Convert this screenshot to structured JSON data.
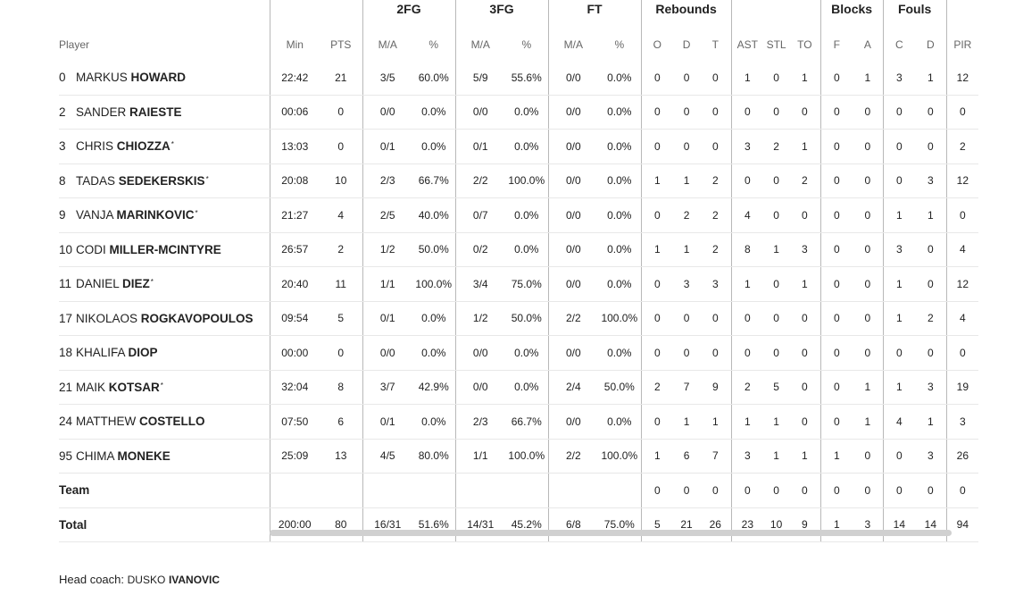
{
  "groups": {
    "fg2": "2FG",
    "fg3": "3FG",
    "ft": "FT",
    "reb": "Rebounds",
    "blk": "Blocks",
    "fouls": "Fouls"
  },
  "columns": [
    "Player",
    "Min",
    "PTS",
    "M/A",
    "%",
    "M/A",
    "%",
    "M/A",
    "%",
    "O",
    "D",
    "T",
    "AST",
    "STL",
    "TO",
    "F",
    "A",
    "C",
    "D",
    "PIR"
  ],
  "players": [
    {
      "num": "0",
      "first": "Markus",
      "last": "Howard",
      "starter": false,
      "stats": [
        "22:42",
        "21",
        "3/5",
        "60.0%",
        "5/9",
        "55.6%",
        "0/0",
        "0.0%",
        "0",
        "0",
        "0",
        "1",
        "0",
        "1",
        "0",
        "1",
        "3",
        "1",
        "12"
      ]
    },
    {
      "num": "2",
      "first": "Sander",
      "last": "Raieste",
      "starter": false,
      "stats": [
        "00:06",
        "0",
        "0/0",
        "0.0%",
        "0/0",
        "0.0%",
        "0/0",
        "0.0%",
        "0",
        "0",
        "0",
        "0",
        "0",
        "0",
        "0",
        "0",
        "0",
        "0",
        "0"
      ]
    },
    {
      "num": "3",
      "first": "Chris",
      "last": "Chiozza",
      "starter": true,
      "stats": [
        "13:03",
        "0",
        "0/1",
        "0.0%",
        "0/1",
        "0.0%",
        "0/0",
        "0.0%",
        "0",
        "0",
        "0",
        "3",
        "2",
        "1",
        "0",
        "0",
        "0",
        "0",
        "2"
      ]
    },
    {
      "num": "8",
      "first": "Tadas",
      "last": "Sedekerskis",
      "starter": true,
      "stats": [
        "20:08",
        "10",
        "2/3",
        "66.7%",
        "2/2",
        "100.0%",
        "0/0",
        "0.0%",
        "1",
        "1",
        "2",
        "0",
        "0",
        "2",
        "0",
        "0",
        "0",
        "3",
        "12"
      ]
    },
    {
      "num": "9",
      "first": "Vanja",
      "last": "Marinkovic",
      "starter": true,
      "stats": [
        "21:27",
        "4",
        "2/5",
        "40.0%",
        "0/7",
        "0.0%",
        "0/0",
        "0.0%",
        "0",
        "2",
        "2",
        "4",
        "0",
        "0",
        "0",
        "0",
        "1",
        "1",
        "0"
      ]
    },
    {
      "num": "10",
      "first": "Codi",
      "last": "Miller-McIntyre",
      "starter": false,
      "stats": [
        "26:57",
        "2",
        "1/2",
        "50.0%",
        "0/2",
        "0.0%",
        "0/0",
        "0.0%",
        "1",
        "1",
        "2",
        "8",
        "1",
        "3",
        "0",
        "0",
        "3",
        "0",
        "4"
      ]
    },
    {
      "num": "11",
      "first": "Daniel",
      "last": "Diez",
      "starter": true,
      "stats": [
        "20:40",
        "11",
        "1/1",
        "100.0%",
        "3/4",
        "75.0%",
        "0/0",
        "0.0%",
        "0",
        "3",
        "3",
        "1",
        "0",
        "1",
        "0",
        "0",
        "1",
        "0",
        "12"
      ]
    },
    {
      "num": "17",
      "first": "Nikolaos",
      "last": "Rogkavopoulos",
      "starter": false,
      "stats": [
        "09:54",
        "5",
        "0/1",
        "0.0%",
        "1/2",
        "50.0%",
        "2/2",
        "100.0%",
        "0",
        "0",
        "0",
        "0",
        "0",
        "0",
        "0",
        "0",
        "1",
        "2",
        "4"
      ]
    },
    {
      "num": "18",
      "first": "Khalifa",
      "last": "Diop",
      "starter": false,
      "stats": [
        "00:00",
        "0",
        "0/0",
        "0.0%",
        "0/0",
        "0.0%",
        "0/0",
        "0.0%",
        "0",
        "0",
        "0",
        "0",
        "0",
        "0",
        "0",
        "0",
        "0",
        "0",
        "0"
      ]
    },
    {
      "num": "21",
      "first": "Maik",
      "last": "Kotsar",
      "starter": true,
      "stats": [
        "32:04",
        "8",
        "3/7",
        "42.9%",
        "0/0",
        "0.0%",
        "2/4",
        "50.0%",
        "2",
        "7",
        "9",
        "2",
        "5",
        "0",
        "0",
        "1",
        "1",
        "3",
        "19"
      ]
    },
    {
      "num": "24",
      "first": "Matthew",
      "last": "Costello",
      "starter": false,
      "stats": [
        "07:50",
        "6",
        "0/1",
        "0.0%",
        "2/3",
        "66.7%",
        "0/0",
        "0.0%",
        "0",
        "1",
        "1",
        "1",
        "1",
        "0",
        "0",
        "1",
        "4",
        "1",
        "3"
      ]
    },
    {
      "num": "95",
      "first": "Chima",
      "last": "Moneke",
      "starter": false,
      "stats": [
        "25:09",
        "13",
        "4/5",
        "80.0%",
        "1/1",
        "100.0%",
        "2/2",
        "100.0%",
        "1",
        "6",
        "7",
        "3",
        "1",
        "1",
        "1",
        "0",
        "0",
        "3",
        "26"
      ]
    }
  ],
  "team_row": {
    "label": "Team",
    "stats": [
      "",
      "",
      "",
      "",
      "",
      "",
      "",
      "",
      "0",
      "0",
      "0",
      "0",
      "0",
      "0",
      "0",
      "0",
      "0",
      "0",
      "0"
    ]
  },
  "total_row": {
    "label": "Total",
    "stats": [
      "200:00",
      "80",
      "16/31",
      "51.6%",
      "14/31",
      "45.2%",
      "6/8",
      "75.0%",
      "5",
      "21",
      "26",
      "23",
      "10",
      "9",
      "1",
      "3",
      "14",
      "14",
      "94"
    ]
  },
  "starter_mark": "*",
  "coach": {
    "label": "Head coach:",
    "first": "Dusko",
    "last": "Ivanovic"
  }
}
